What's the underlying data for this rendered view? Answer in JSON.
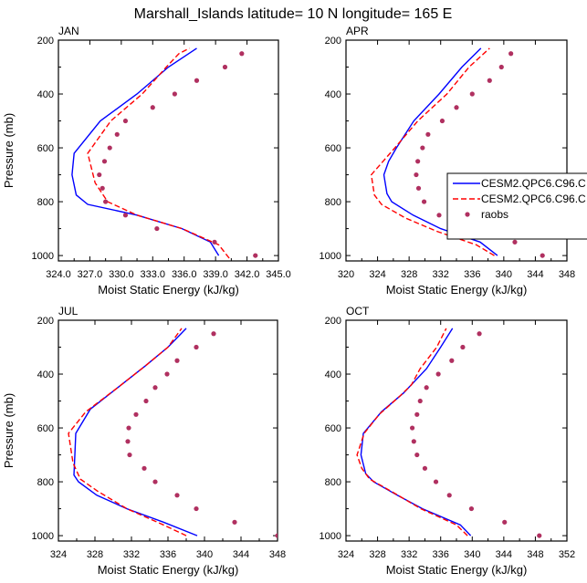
{
  "title": "Marshall_Islands  latitude= 10 N longitude= 165 E",
  "colors": {
    "cesm_a": "#0000ff",
    "cesm_b": "#ff0000",
    "raobs": "#b03060"
  },
  "chart_data": [
    {
      "type": "line",
      "panel": "JAN",
      "xlabel": "Moist Static Energy (kJ/kg)",
      "ylabel": "Pressure (mb)",
      "xlim": [
        324,
        345
      ],
      "ylim": [
        1020,
        200
      ],
      "xticks": [
        "324.0",
        "327.0",
        "330.0",
        "333.0",
        "336.0",
        "339.0",
        "342.0",
        "345.0"
      ],
      "xtick_values": [
        324,
        327,
        330,
        333,
        336,
        339,
        342,
        345
      ],
      "yticks": [
        "200",
        "400",
        "600",
        "800",
        "1000"
      ],
      "ytick_values": [
        200,
        400,
        600,
        800,
        1000
      ],
      "series": [
        {
          "name": "CESM2.QPC6.C96.C",
          "style": "solid",
          "color": "#0000ff",
          "points": [
            [
              339.3,
              1000
            ],
            [
              338.5,
              950
            ],
            [
              335.8,
              900
            ],
            [
              331.5,
              850
            ],
            [
              326.8,
              810
            ],
            [
              325.7,
              775
            ],
            [
              325.3,
              700
            ],
            [
              325.5,
              620
            ],
            [
              328.0,
              500
            ],
            [
              331.5,
              400
            ],
            [
              334.5,
              300
            ],
            [
              337.2,
              230
            ]
          ]
        },
        {
          "name": "CESM2.QPC6.C96.C",
          "style": "dashed",
          "color": "#ff0000",
          "points": [
            [
              340.3,
              1010
            ],
            [
              339.3,
              960
            ],
            [
              335.8,
              900
            ],
            [
              331.5,
              850
            ],
            [
              328.7,
              800
            ],
            [
              327.5,
              730
            ],
            [
              326.8,
              620
            ],
            [
              329.0,
              500
            ],
            [
              332.0,
              400
            ],
            [
              334.3,
              300
            ],
            [
              335.5,
              250
            ],
            [
              336.5,
              230
            ]
          ]
        },
        {
          "name": "raobs",
          "style": "dot",
          "color": "#b03060",
          "points": [
            [
              342.8,
              1000
            ],
            [
              338.9,
              950
            ],
            [
              333.4,
              900
            ],
            [
              330.4,
              850
            ],
            [
              328.5,
              800
            ],
            [
              328.2,
              750
            ],
            [
              327.9,
              700
            ],
            [
              328.4,
              650
            ],
            [
              328.9,
              600
            ],
            [
              329.6,
              550
            ],
            [
              330.4,
              500
            ],
            [
              333.0,
              450
            ],
            [
              335.1,
              400
            ],
            [
              337.2,
              350
            ],
            [
              339.9,
              300
            ],
            [
              341.5,
              250
            ]
          ]
        }
      ]
    },
    {
      "type": "line",
      "panel": "APR",
      "xlabel": "Moist Static Energy (kJ/kg)",
      "ylabel": "",
      "xlim": [
        320,
        348
      ],
      "ylim": [
        1020,
        200
      ],
      "xticks": [
        "320",
        "324",
        "328",
        "332",
        "336",
        "340",
        "344",
        "348"
      ],
      "xtick_values": [
        320,
        324,
        328,
        332,
        336,
        340,
        344,
        348
      ],
      "yticks": [
        "200",
        "400",
        "600",
        "800",
        "1000"
      ],
      "ytick_values": [
        200,
        400,
        600,
        800,
        1000
      ],
      "series": [
        {
          "name": "CESM2.QPC6.C96.C",
          "style": "solid",
          "color": "#0000ff",
          "points": [
            [
              339.2,
              1000
            ],
            [
              337.0,
              950
            ],
            [
              332.0,
              900
            ],
            [
              328.5,
              850
            ],
            [
              325.8,
              800
            ],
            [
              325.2,
              770
            ],
            [
              324.8,
              700
            ],
            [
              325.4,
              650
            ],
            [
              326.4,
              600
            ],
            [
              328.6,
              500
            ],
            [
              331.8,
              400
            ],
            [
              334.7,
              300
            ],
            [
              337.1,
              230
            ]
          ]
        },
        {
          "name": "CESM2.QPC6.C96.C",
          "style": "dashed",
          "color": "#ff0000",
          "points": [
            [
              338.8,
              1000
            ],
            [
              336.5,
              960
            ],
            [
              331.5,
              910
            ],
            [
              327.5,
              860
            ],
            [
              324.5,
              810
            ],
            [
              323.6,
              775
            ],
            [
              323.2,
              700
            ],
            [
              324.7,
              650
            ],
            [
              326.2,
              600
            ],
            [
              329.1,
              500
            ],
            [
              332.8,
              400
            ],
            [
              335.6,
              300
            ],
            [
              338.2,
              230
            ]
          ]
        },
        {
          "name": "raobs",
          "style": "dot",
          "color": "#b03060",
          "points": [
            [
              344.9,
              1000
            ],
            [
              341.4,
              950
            ],
            [
              336.7,
              900
            ],
            [
              331.8,
              850
            ],
            [
              329.9,
              800
            ],
            [
              329.2,
              750
            ],
            [
              328.9,
              700
            ],
            [
              329.1,
              650
            ],
            [
              329.7,
              600
            ],
            [
              330.4,
              550
            ],
            [
              332.2,
              500
            ],
            [
              334.0,
              450
            ],
            [
              336.0,
              400
            ],
            [
              338.2,
              350
            ],
            [
              339.7,
              300
            ],
            [
              340.9,
              250
            ]
          ]
        }
      ]
    },
    {
      "type": "line",
      "panel": "JUL",
      "xlabel": "Moist Static Energy (kJ/kg)",
      "ylabel": "Pressure (mb)",
      "xlim": [
        324,
        348
      ],
      "ylim": [
        1020,
        200
      ],
      "xticks": [
        "324",
        "328",
        "332",
        "336",
        "340",
        "344",
        "348"
      ],
      "xtick_values": [
        324,
        328,
        332,
        336,
        340,
        344,
        348
      ],
      "yticks": [
        "200",
        "400",
        "600",
        "800",
        "1000"
      ],
      "ytick_values": [
        200,
        400,
        600,
        800,
        1000
      ],
      "series": [
        {
          "name": "CESM2.QPC6.C96.C",
          "style": "solid",
          "color": "#0000ff",
          "points": [
            [
              339.2,
              1000
            ],
            [
              335.5,
              950
            ],
            [
              331.5,
              900
            ],
            [
              328.2,
              850
            ],
            [
              326.2,
              800
            ],
            [
              325.7,
              775
            ],
            [
              325.8,
              700
            ],
            [
              325.9,
              620
            ],
            [
              327.5,
              530
            ],
            [
              330.5,
              450
            ],
            [
              333.5,
              370
            ],
            [
              336.0,
              300
            ],
            [
              338.0,
              230
            ]
          ]
        },
        {
          "name": "CESM2.QPC6.C96.C",
          "style": "dashed",
          "color": "#ff0000",
          "points": [
            [
              338.0,
              1000
            ],
            [
              335.5,
              960
            ],
            [
              331.5,
              900
            ],
            [
              328.3,
              835
            ],
            [
              326.4,
              790
            ],
            [
              325.6,
              730
            ],
            [
              325.1,
              620
            ],
            [
              327.0,
              540
            ],
            [
              330.5,
              450
            ],
            [
              333.5,
              370
            ],
            [
              336.0,
              300
            ],
            [
              337.5,
              230
            ]
          ]
        },
        {
          "name": "raobs",
          "style": "dot",
          "color": "#b03060",
          "points": [
            [
              348.0,
              1000
            ],
            [
              343.3,
              950
            ],
            [
              339.1,
              900
            ],
            [
              337.0,
              850
            ],
            [
              334.6,
              800
            ],
            [
              333.4,
              750
            ],
            [
              331.8,
              700
            ],
            [
              331.6,
              650
            ],
            [
              331.7,
              600
            ],
            [
              332.5,
              550
            ],
            [
              333.6,
              500
            ],
            [
              334.6,
              450
            ],
            [
              335.9,
              400
            ],
            [
              337.0,
              350
            ],
            [
              339.1,
              300
            ],
            [
              341.0,
              250
            ]
          ]
        }
      ]
    },
    {
      "type": "line",
      "panel": "OCT",
      "xlabel": "Moist Static Energy (kJ/kg)",
      "ylabel": "",
      "xlim": [
        324,
        352
      ],
      "ylim": [
        1020,
        200
      ],
      "xticks": [
        "324",
        "328",
        "332",
        "336",
        "340",
        "344",
        "348",
        "352"
      ],
      "xtick_values": [
        324,
        328,
        332,
        336,
        340,
        344,
        348,
        352
      ],
      "yticks": [
        "200",
        "400",
        "600",
        "800",
        "1000"
      ],
      "ytick_values": [
        200,
        400,
        600,
        800,
        1000
      ],
      "series": [
        {
          "name": "CESM2.QPC6.C96.C",
          "style": "solid",
          "color": "#0000ff",
          "points": [
            [
              339.8,
              1000
            ],
            [
              338.5,
              960
            ],
            [
              333.7,
              900
            ],
            [
              330.5,
              850
            ],
            [
              327.5,
              800
            ],
            [
              326.5,
              770
            ],
            [
              325.9,
              700
            ],
            [
              326.2,
              620
            ],
            [
              328.5,
              540
            ],
            [
              331.3,
              470
            ],
            [
              334.2,
              380
            ],
            [
              336.0,
              300
            ],
            [
              337.5,
              230
            ]
          ]
        },
        {
          "name": "CESM2.QPC6.C96.C",
          "style": "dashed",
          "color": "#ff0000",
          "points": [
            [
              339.4,
              1000
            ],
            [
              338.0,
              960
            ],
            [
              333.5,
              900
            ],
            [
              330.0,
              840
            ],
            [
              327.0,
              790
            ],
            [
              326.0,
              750
            ],
            [
              325.4,
              700
            ],
            [
              326.3,
              620
            ],
            [
              328.2,
              550
            ],
            [
              330.9,
              480
            ],
            [
              332.3,
              440
            ],
            [
              333.4,
              380
            ],
            [
              335.5,
              300
            ],
            [
              336.7,
              230
            ]
          ]
        },
        {
          "name": "raobs",
          "style": "dot",
          "color": "#b03060",
          "points": [
            [
              348.5,
              1000
            ],
            [
              344.1,
              950
            ],
            [
              339.9,
              900
            ],
            [
              337.1,
              850
            ],
            [
              335.4,
              800
            ],
            [
              334.0,
              750
            ],
            [
              333.0,
              700
            ],
            [
              332.6,
              650
            ],
            [
              332.4,
              600
            ],
            [
              333.0,
              550
            ],
            [
              333.4,
              500
            ],
            [
              334.2,
              450
            ],
            [
              335.7,
              400
            ],
            [
              337.4,
              350
            ],
            [
              338.8,
              300
            ],
            [
              340.9,
              250
            ]
          ]
        }
      ]
    }
  ],
  "legend": {
    "placement": "right, beside APR panel",
    "entries": [
      {
        "label": "CESM2.QPC6.C96.C",
        "style": "solid"
      },
      {
        "label": "CESM2.QPC6.C96.C",
        "style": "dashed"
      },
      {
        "label": "raobs",
        "style": "dot"
      }
    ]
  }
}
